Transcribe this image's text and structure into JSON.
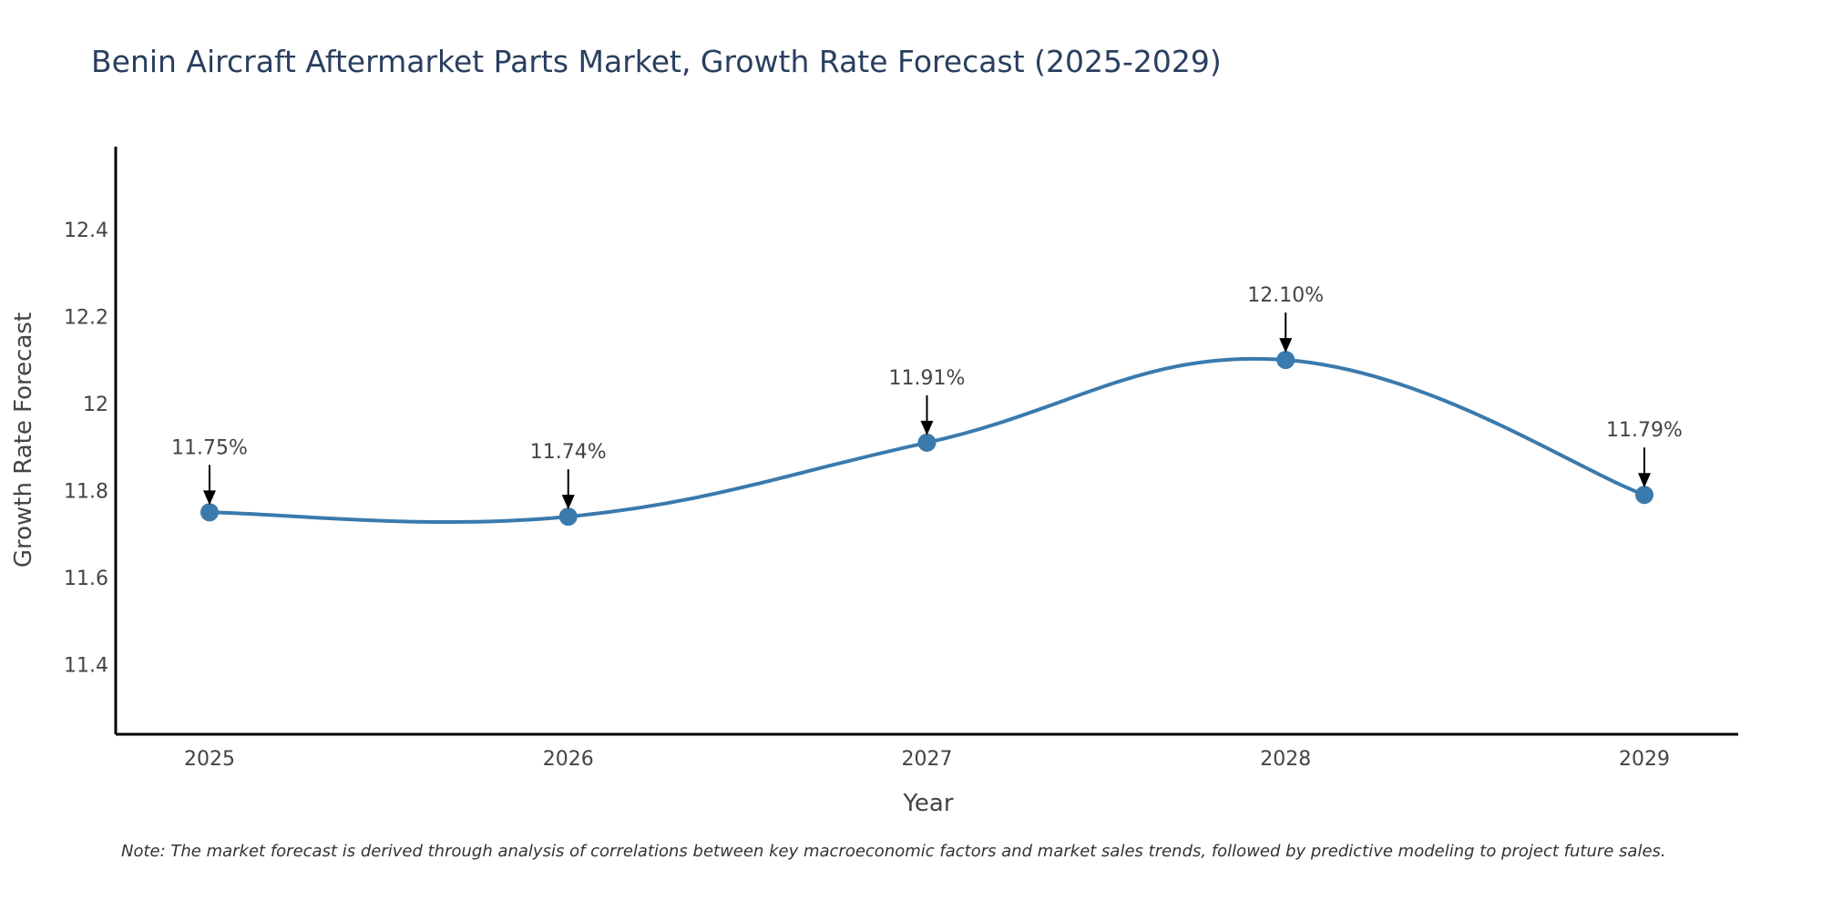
{
  "chart_data": {
    "type": "line",
    "title": "Benin Aircraft Aftermarket Parts Market, Growth Rate Forecast (2025-2029)",
    "xlabel": "Year",
    "ylabel": "Growth Rate Forecast",
    "categories": [
      "2025",
      "2026",
      "2027",
      "2028",
      "2029"
    ],
    "series": [
      {
        "name": "Growth Rate Forecast",
        "color": "#3a7aad",
        "values": [
          11.75,
          11.74,
          11.91,
          12.1,
          11.79
        ]
      }
    ],
    "annotations": [
      "11.75%",
      "11.74%",
      "11.91%",
      "12.10%",
      "11.79%"
    ],
    "ylim": [
      11.24,
      12.59
    ],
    "yticks": [
      11.4,
      11.6,
      11.8,
      12,
      12.2,
      12.4
    ],
    "ytick_labels": [
      "11.4",
      "11.6",
      "11.8",
      "12",
      "12.2",
      "12.4"
    ],
    "grid": false,
    "note": "Note: The market forecast is derived through analysis of correlations between key macroeconomic factors and market sales trends, followed by predictive modeling to project future sales."
  }
}
